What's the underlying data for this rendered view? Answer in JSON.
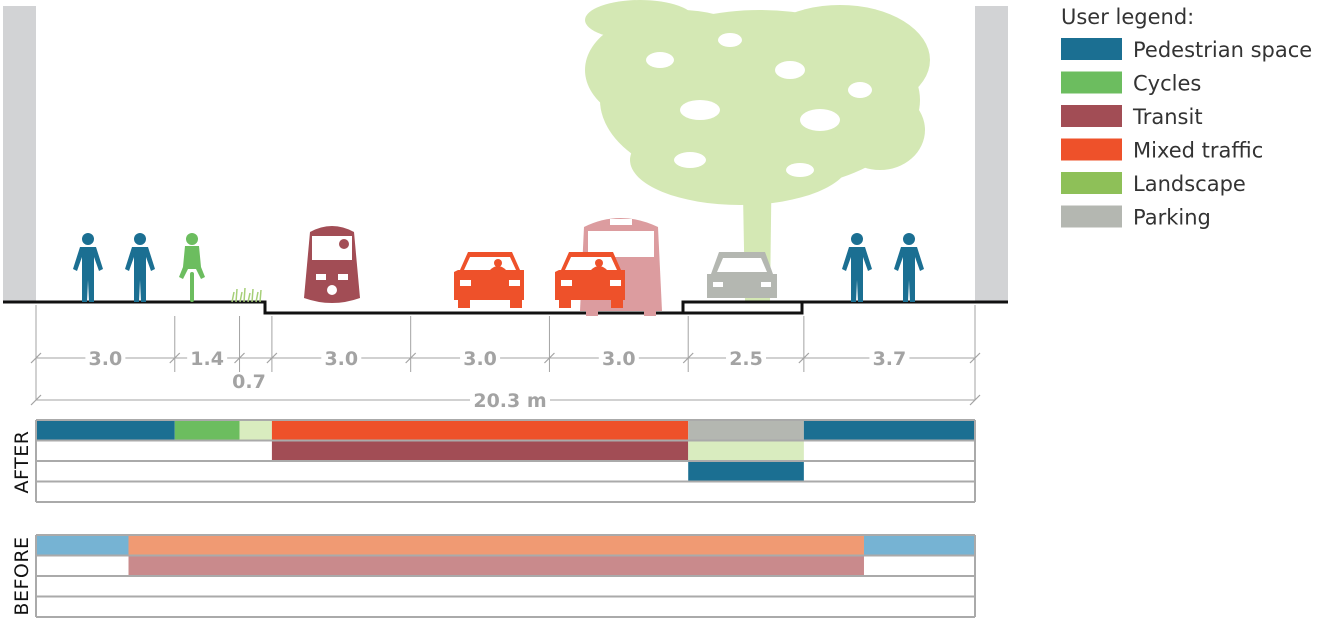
{
  "street": {
    "segments": [
      {
        "name": "sidewalk-left",
        "width": "3.0",
        "w": 3.0
      },
      {
        "name": "cycle-lane",
        "width": "1.4",
        "w": 1.4
      },
      {
        "name": "landscape-strip",
        "width": "0.7",
        "w": 0.7
      },
      {
        "name": "lane-1",
        "width": "3.0",
        "w": 3.0
      },
      {
        "name": "lane-2",
        "width": "3.0",
        "w": 3.0
      },
      {
        "name": "lane-3",
        "width": "3.0",
        "w": 3.0
      },
      {
        "name": "parking-lane",
        "width": "2.5",
        "w": 2.5
      },
      {
        "name": "sidewalk-right",
        "width": "3.7",
        "w": 3.7
      }
    ],
    "total_label": "20.3 m",
    "total_m": 20.3
  },
  "legend": {
    "title": "User legend:",
    "items": [
      {
        "key": "pedestrian",
        "label": "Pedestrian space",
        "color": "#1b6f92"
      },
      {
        "key": "cycles",
        "label": "Cycles",
        "color": "#6cbd5f"
      },
      {
        "key": "transit",
        "label": "Transit",
        "color": "#a24d55"
      },
      {
        "key": "mixed",
        "label": "Mixed traffic",
        "color": "#ee512a"
      },
      {
        "key": "landscape",
        "label": "Landscape",
        "color": "#8ec058"
      },
      {
        "key": "parking",
        "label": "Parking",
        "color": "#b4b7b1"
      }
    ]
  },
  "after": {
    "label": "AFTER",
    "rows": [
      [
        {
          "from": 0,
          "to": 3.0,
          "color": "#1b6f92"
        },
        {
          "from": 3.0,
          "to": 4.4,
          "color": "#6cbd5f"
        },
        {
          "from": 4.4,
          "to": 5.1,
          "color": "#d9ecbf"
        },
        {
          "from": 5.1,
          "to": 14.1,
          "color": "#ee512a"
        },
        {
          "from": 14.1,
          "to": 16.6,
          "color": "#b4b7b1"
        },
        {
          "from": 16.6,
          "to": 20.3,
          "color": "#1b6f92"
        }
      ],
      [
        {
          "from": 5.1,
          "to": 14.1,
          "color": "#a24d55"
        },
        {
          "from": 14.1,
          "to": 16.6,
          "color": "#d9ecbf"
        }
      ],
      [
        {
          "from": 14.1,
          "to": 16.6,
          "color": "#1b6f92"
        }
      ],
      []
    ]
  },
  "before": {
    "label": "BEFORE",
    "rows": [
      [
        {
          "from": 0,
          "to": 2.0,
          "color": "#76b3d3"
        },
        {
          "from": 2.0,
          "to": 17.9,
          "color": "#f09a73"
        },
        {
          "from": 17.9,
          "to": 20.3,
          "color": "#76b3d3"
        }
      ],
      [
        {
          "from": 2.0,
          "to": 17.9,
          "color": "#c98a8c"
        }
      ],
      [],
      []
    ]
  },
  "icons": {
    "pedestrian": "pedestrian-icon",
    "cyclist": "cyclist-icon",
    "grass": "grass-icon",
    "tram": "tram-icon",
    "car": "car-icon",
    "bus": "bus-icon",
    "parked_car": "parked-car-icon",
    "tree": "tree-icon"
  }
}
